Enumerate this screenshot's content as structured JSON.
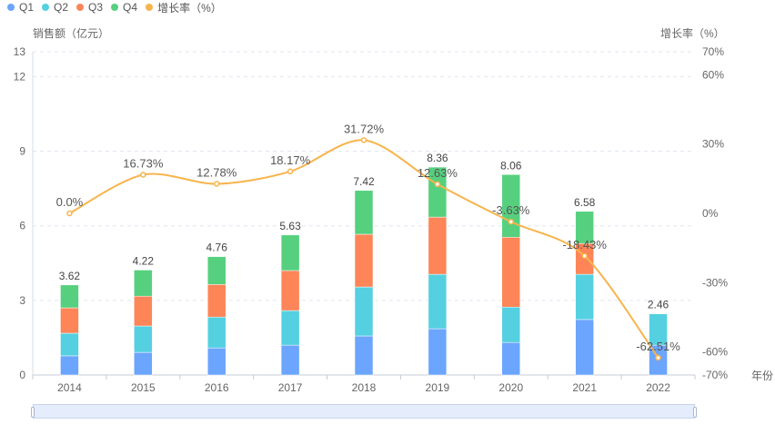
{
  "chart_data": {
    "type": "bar",
    "stacked": true,
    "categories": [
      "2014",
      "2015",
      "2016",
      "2017",
      "2018",
      "2019",
      "2020",
      "2021",
      "2022"
    ],
    "series": [
      {
        "name": "Q1",
        "type": "bar",
        "color": "#6ba5fd",
        "values": [
          0.77,
          0.91,
          1.09,
          1.2,
          1.57,
          1.86,
          1.31,
          2.23,
          1.2
        ]
      },
      {
        "name": "Q2",
        "type": "bar",
        "color": "#55d0e0",
        "values": [
          0.91,
          1.06,
          1.24,
          1.39,
          1.97,
          2.19,
          1.42,
          1.82,
          1.26
        ]
      },
      {
        "name": "Q3",
        "type": "bar",
        "color": "#fd8558",
        "values": [
          1.02,
          1.2,
          1.31,
          1.61,
          2.12,
          2.3,
          2.81,
          1.24,
          0
        ]
      },
      {
        "name": "Q4",
        "type": "bar",
        "color": "#56d07e",
        "values": [
          0.92,
          1.05,
          1.12,
          1.43,
          1.76,
          2.01,
          2.52,
          1.29,
          0
        ]
      },
      {
        "name": "增长率（%）",
        "type": "line",
        "color": "#f7b44c",
        "axis": "right",
        "values": [
          0.0,
          16.73,
          12.78,
          18.17,
          31.72,
          12.63,
          -3.63,
          -18.43,
          -62.51
        ]
      }
    ],
    "totals": [
      "3.62",
      "4.22",
      "4.76",
      "5.63",
      "7.42",
      "8.36",
      "8.06",
      "6.58",
      "2.46"
    ],
    "line_labels": [
      "0.0%",
      "16.73%",
      "12.78%",
      "18.17%",
      "31.72%",
      "12.63%",
      "-3.63%",
      "-18.43%",
      "-62.51%"
    ],
    "xlabel": "年份",
    "ylabel": "销售额（亿元）",
    "y2label": "增长率（%）",
    "ylim": [
      0,
      13
    ],
    "yticks": [
      0,
      3,
      6,
      9,
      12,
      13
    ],
    "y2lim": [
      -70,
      70
    ],
    "y2ticks": [
      -70,
      -60,
      -30,
      0,
      30,
      60,
      70
    ],
    "y2tick_labels": [
      "-70%",
      "-60%",
      "-30%",
      "0%",
      "30%",
      "60%",
      "70%"
    ],
    "grid": true,
    "legend": "top-left"
  },
  "legend": [
    {
      "label": "Q1",
      "color": "#6ba5fd"
    },
    {
      "label": "Q2",
      "color": "#55d0e0"
    },
    {
      "label": "Q3",
      "color": "#fd8558"
    },
    {
      "label": "Q4",
      "color": "#56d07e"
    },
    {
      "label": "增长率（%）",
      "color": "#f7b44c"
    }
  ],
  "axes": {
    "left_title": "销售额（亿元）",
    "right_title": "增长率（%）",
    "x_title": "年份"
  },
  "data_zoom": {
    "start_percent": 0,
    "end_percent": 100
  }
}
